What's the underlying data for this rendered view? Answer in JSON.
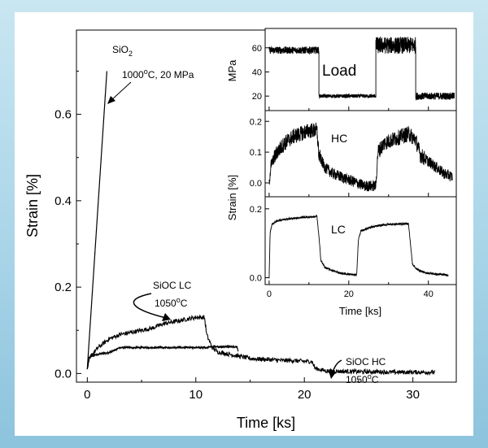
{
  "chart_data": [
    {
      "type": "line",
      "xlabel": "Time [ks]",
      "ylabel": "Strain [%]",
      "xlim": [
        -1,
        34
      ],
      "ylim": [
        -0.02,
        0.795
      ],
      "xticks": [
        0,
        10,
        20,
        30
      ],
      "yticks": [
        0.0,
        0.2,
        0.4,
        0.6
      ],
      "ytick_labels": [
        "0.0",
        "0.2",
        "0.4",
        "0.6"
      ],
      "series": [
        {
          "name": "SiO2",
          "x": [
            0,
            1.8
          ],
          "y": [
            0.01,
            0.7
          ]
        },
        {
          "name": "SiOC LC",
          "x": [
            0,
            0.1,
            0.4,
            1,
            2,
            3,
            4,
            5,
            6,
            7,
            8,
            9,
            10,
            10.7,
            11,
            11.2,
            13.8,
            13.9
          ],
          "y": [
            0.01,
            0.035,
            0.04,
            0.045,
            0.048,
            0.06,
            0.06,
            0.06,
            0.06,
            0.06,
            0.06,
            0.06,
            0.06,
            0.06,
            0.06,
            0.062,
            0.062,
            0.052
          ],
          "noise": 0.002
        },
        {
          "name": "SiOC HC",
          "x": [
            0,
            0.3,
            1,
            2,
            3,
            4,
            5,
            6,
            7,
            8,
            9,
            10,
            10.8,
            11.0,
            11.5,
            12,
            13,
            14,
            15,
            16,
            17,
            18,
            19,
            20,
            20.7,
            21,
            22,
            23,
            24,
            25,
            26,
            27,
            28,
            29,
            30,
            31,
            32
          ],
          "y": [
            0.01,
            0.04,
            0.06,
            0.08,
            0.09,
            0.095,
            0.1,
            0.105,
            0.115,
            0.12,
            0.125,
            0.13,
            0.13,
            0.09,
            0.06,
            0.05,
            0.045,
            0.04,
            0.035,
            0.033,
            0.032,
            0.03,
            0.03,
            0.028,
            0.028,
            0.012,
            0.006,
            0.005,
            0.005,
            0.004,
            0.004,
            0.004,
            0.003,
            0.003,
            0.003,
            0.003,
            0.003
          ],
          "noise": 0.005
        }
      ],
      "annotations": [
        {
          "label": "SiO",
          "sub": "2"
        },
        {
          "label": "1000",
          "sup": "o",
          "rest": "C, 20 MPa"
        },
        {
          "label": "SiOC LC"
        },
        {
          "label": "1050",
          "sup": "o",
          "rest": "C"
        },
        {
          "label": "SiOC HC"
        },
        {
          "label": "1050",
          "sup": "o",
          "rest": "C"
        }
      ]
    },
    {
      "type": "line",
      "panel": "Load",
      "xlabel": "",
      "ylabel": "MPa",
      "xlim": [
        -1,
        47
      ],
      "ylim": [
        8,
        76
      ],
      "yticks": [
        20,
        40,
        60
      ],
      "segments": [
        [
          0,
          12.5,
          58
        ],
        [
          12.5,
          26.8,
          20
        ],
        [
          26.8,
          36.8,
          62
        ],
        [
          36.8,
          46.5,
          20
        ]
      ],
      "noise": [
        3,
        1.5,
        7,
        3
      ]
    },
    {
      "type": "line",
      "panel": "HC",
      "xlabel": "",
      "ylabel": "",
      "xlim": [
        -1,
        47
      ],
      "ylim": [
        -0.045,
        0.235
      ],
      "yticks": [
        0.0,
        0.1,
        0.2
      ],
      "ytick_labels": [
        "0.0",
        "0.1",
        "0.2"
      ],
      "x": [
        0,
        0.5,
        2,
        4,
        6,
        8,
        10,
        12,
        12.5,
        14,
        16,
        18,
        20,
        22,
        24,
        26.8,
        27.3,
        29,
        31,
        33,
        35,
        36.8,
        38,
        40,
        42,
        44,
        46
      ],
      "y": [
        0.0,
        0.06,
        0.1,
        0.13,
        0.15,
        0.16,
        0.17,
        0.17,
        0.09,
        0.05,
        0.03,
        0.02,
        0.01,
        0.0,
        -0.01,
        -0.01,
        0.1,
        0.13,
        0.14,
        0.15,
        0.16,
        0.14,
        0.09,
        0.07,
        0.05,
        0.03,
        0.02
      ],
      "noise": 0.018
    },
    {
      "type": "line",
      "panel": "LC",
      "xlabel": "Time [ks]",
      "ylabel": "",
      "xlim": [
        -1,
        47
      ],
      "ylim": [
        -0.02,
        0.235
      ],
      "xticks": [
        0,
        20,
        40
      ],
      "yticks": [
        0.0,
        0.2
      ],
      "ytick_labels": [
        "0.0",
        "0.2"
      ],
      "x": [
        0,
        0.25,
        0.7,
        2,
        4,
        6,
        8,
        10,
        12,
        12.5,
        13,
        14,
        16,
        18,
        20,
        22,
        22.4,
        23,
        25,
        28,
        30,
        33,
        35,
        35.4,
        36,
        37,
        39,
        42,
        45
      ],
      "y": [
        0,
        0.13,
        0.155,
        0.165,
        0.17,
        0.172,
        0.175,
        0.176,
        0.178,
        0.12,
        0.05,
        0.03,
        0.02,
        0.013,
        0.01,
        0.008,
        0.11,
        0.135,
        0.145,
        0.152,
        0.155,
        0.156,
        0.157,
        0.11,
        0.04,
        0.025,
        0.015,
        0.01,
        0.008
      ],
      "noise": 0.003
    }
  ],
  "inset_ylabel": "Strain  [%]"
}
